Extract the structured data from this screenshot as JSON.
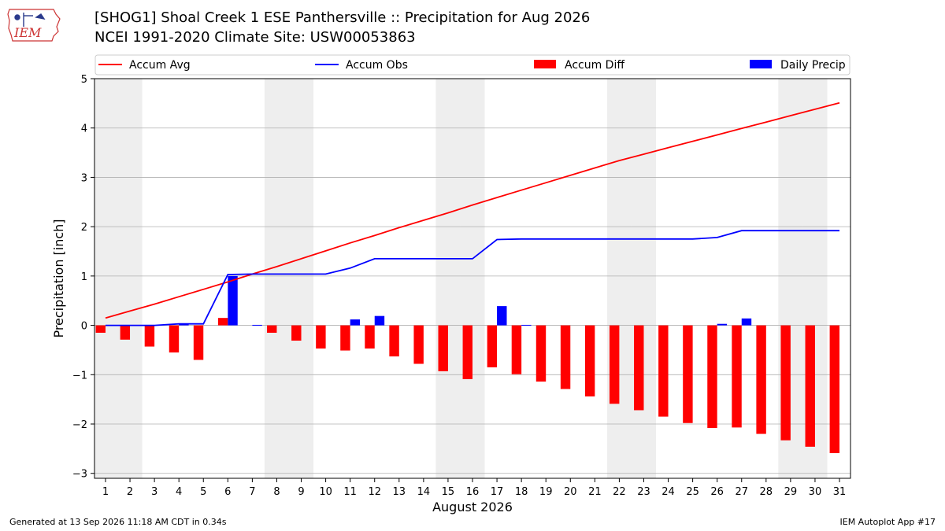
{
  "header": {
    "title_line1": "[SHOG1] Shoal Creek 1 ESE Panthersville :: Precipitation for Aug 2026",
    "title_line2": "NCEI 1991-2020 Climate Site: USW00053863"
  },
  "logo": {
    "text": "IEM"
  },
  "footer": {
    "generated": "Generated at 13 Sep 2026 11:18 AM CDT in 0.34s",
    "app": "IEM Autoplot App #17"
  },
  "colors": {
    "accum_avg": "#ff0000",
    "accum_obs": "#0000ff",
    "accum_diff": "#ff0000",
    "daily_precip": "#0000ff",
    "weekend_shade": "#eeeeee",
    "grid": "#b0b0b0"
  },
  "chart_data": {
    "type": "bar",
    "xlabel": "August 2026",
    "ylabel": "Precipitation [inch]",
    "ylim": [
      -3.1,
      5.0
    ],
    "yticks": [
      -3,
      -2,
      -1,
      0,
      1,
      2,
      3,
      4,
      5
    ],
    "ytick_labels": [
      "−3",
      "−2",
      "−1",
      "0",
      "1",
      "2",
      "3",
      "4",
      "5"
    ],
    "grid": "horizontal",
    "legend_position": "top",
    "legend": [
      {
        "label": "Accum Avg",
        "kind": "line",
        "color": "#ff0000"
      },
      {
        "label": "Accum Obs",
        "kind": "line",
        "color": "#0000ff"
      },
      {
        "label": "Accum Diff",
        "kind": "bar",
        "color": "#ff0000"
      },
      {
        "label": "Daily Precip",
        "kind": "bar",
        "color": "#0000ff"
      }
    ],
    "days": [
      1,
      2,
      3,
      4,
      5,
      6,
      7,
      8,
      9,
      10,
      11,
      12,
      13,
      14,
      15,
      16,
      17,
      18,
      19,
      20,
      21,
      22,
      23,
      24,
      25,
      26,
      27,
      28,
      29,
      30,
      31
    ],
    "weekend_days": [
      1,
      2,
      8,
      9,
      15,
      16,
      22,
      23,
      29,
      30
    ],
    "series": [
      {
        "name": "Accum Avg",
        "kind": "line",
        "color": "#ff0000",
        "values": [
          0.15,
          0.29,
          0.43,
          0.58,
          0.73,
          0.88,
          1.04,
          1.19,
          1.35,
          1.51,
          1.67,
          1.82,
          1.98,
          2.13,
          2.28,
          2.44,
          2.59,
          2.74,
          2.89,
          3.04,
          3.19,
          3.34,
          3.47,
          3.6,
          3.73,
          3.86,
          3.99,
          4.12,
          4.25,
          4.38,
          4.51
        ]
      },
      {
        "name": "Accum Obs",
        "kind": "line",
        "color": "#0000ff",
        "values": [
          0.0,
          0.0,
          0.0,
          0.03,
          0.03,
          1.03,
          1.04,
          1.04,
          1.04,
          1.04,
          1.16,
          1.35,
          1.35,
          1.35,
          1.35,
          1.35,
          1.74,
          1.75,
          1.75,
          1.75,
          1.75,
          1.75,
          1.75,
          1.75,
          1.75,
          1.78,
          1.92,
          1.92,
          1.92,
          1.92,
          1.92
        ]
      },
      {
        "name": "Accum Diff",
        "kind": "bar",
        "color": "#ff0000",
        "values": [
          -0.15,
          -0.29,
          -0.43,
          -0.55,
          -0.7,
          0.15,
          0.0,
          -0.15,
          -0.31,
          -0.47,
          -0.51,
          -0.47,
          -0.63,
          -0.78,
          -0.93,
          -1.09,
          -0.85,
          -0.99,
          -1.14,
          -1.29,
          -1.44,
          -1.59,
          -1.72,
          -1.85,
          -1.98,
          -2.08,
          -2.07,
          -2.2,
          -2.33,
          -2.46,
          -2.59
        ]
      },
      {
        "name": "Daily Precip",
        "kind": "bar",
        "color": "#0000ff",
        "values": [
          0.0,
          0.0,
          0.0,
          0.03,
          0.0,
          1.0,
          0.01,
          0.0,
          0.0,
          0.0,
          0.12,
          0.19,
          0.0,
          0.0,
          0.0,
          0.0,
          0.39,
          0.01,
          0.0,
          0.0,
          0.0,
          0.0,
          0.0,
          0.0,
          0.0,
          0.03,
          0.14,
          0.0,
          0.0,
          0.0,
          0.0
        ]
      }
    ]
  }
}
